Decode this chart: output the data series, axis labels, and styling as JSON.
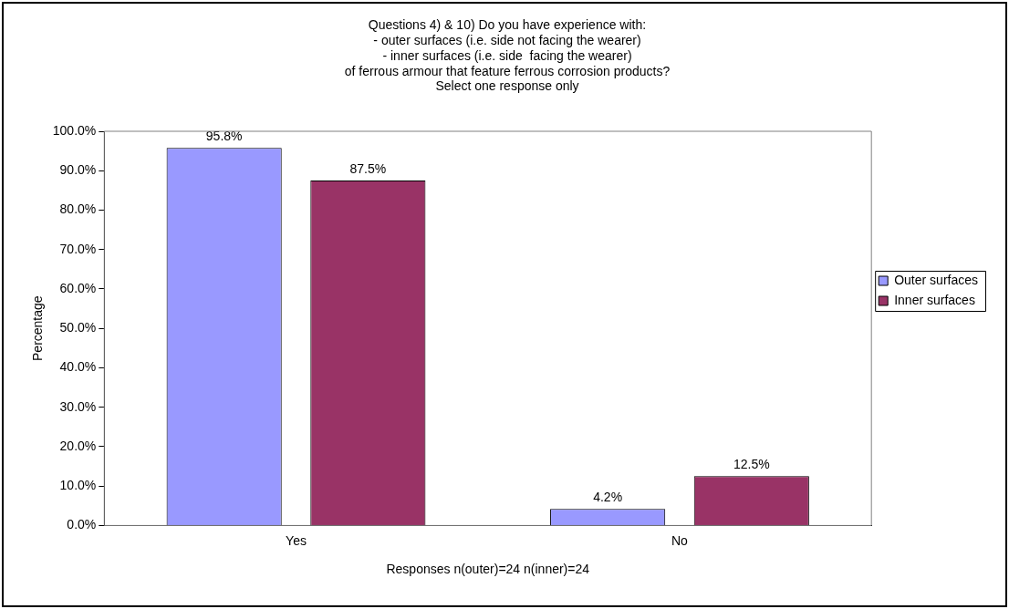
{
  "chart_data": {
    "type": "bar",
    "title": "Questions 4) & 10) Do you have experience with:\n- outer surfaces (i.e. side not facing the wearer)\n- inner surfaces (i.e. side  facing the wearer)\nof ferrous armour that feature ferrous corrosion products?\nSelect one response only",
    "xlabel": "Responses n(outer)=24 n(inner)=24",
    "ylabel": "Percentage",
    "categories": [
      "Yes",
      "No"
    ],
    "series": [
      {
        "name": "Outer surfaces",
        "color": "#9999ff",
        "values": [
          95.8,
          4.2
        ],
        "value_labels": [
          "95.8%",
          "4.2%"
        ]
      },
      {
        "name": "Inner surfaces",
        "color": "#993366",
        "values": [
          87.5,
          12.5
        ],
        "value_labels": [
          "87.5%",
          "12.5%"
        ]
      }
    ],
    "ylim": [
      0,
      100
    ],
    "yticks": [
      {
        "value": 0,
        "label": "0.0%"
      },
      {
        "value": 10,
        "label": "10.0%"
      },
      {
        "value": 20,
        "label": "20.0%"
      },
      {
        "value": 30,
        "label": "30.0%"
      },
      {
        "value": 40,
        "label": "40.0%"
      },
      {
        "value": 50,
        "label": "50.0%"
      },
      {
        "value": 60,
        "label": "60.0%"
      },
      {
        "value": 70,
        "label": "70.0%"
      },
      {
        "value": 80,
        "label": "80.0%"
      },
      {
        "value": 90,
        "label": "90.0%"
      },
      {
        "value": 100,
        "label": "100.0%"
      }
    ],
    "grid": false,
    "legend": "right"
  }
}
